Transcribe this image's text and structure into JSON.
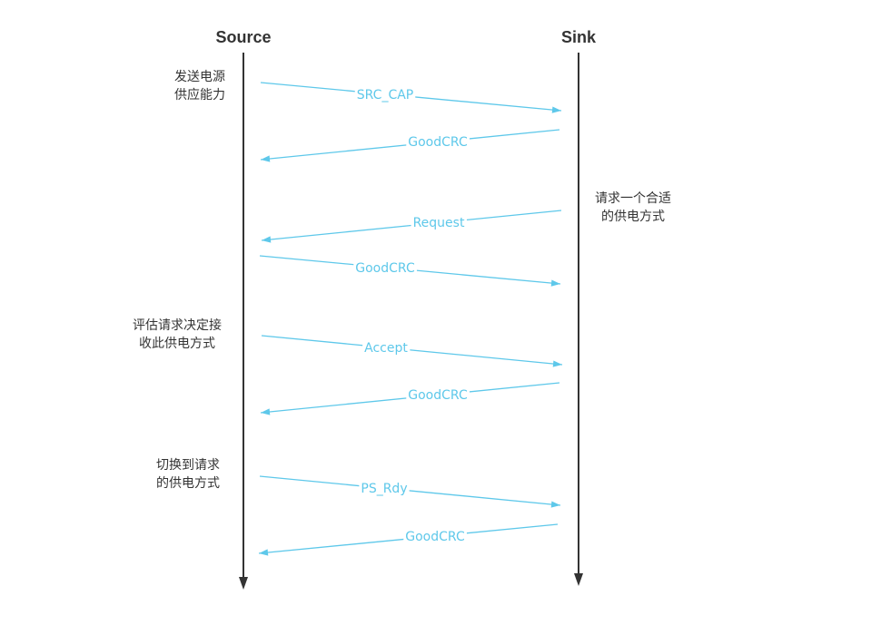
{
  "colors": {
    "lifeline": "#333333",
    "message": "#5ec8ea",
    "text": "#333333",
    "background": "#ffffff"
  },
  "participants": {
    "source": "Source",
    "sink": "Sink"
  },
  "notes": [
    {
      "side": "source",
      "lines": [
        "发送电源",
        "供应能力"
      ]
    },
    {
      "side": "sink",
      "lines": [
        "请求一个合适",
        "的供电方式"
      ]
    },
    {
      "side": "source",
      "lines": [
        "评估请求决定接",
        "收此供电方式"
      ]
    },
    {
      "side": "source",
      "lines": [
        "切换到请求",
        "的供电方式"
      ]
    }
  ],
  "messages": [
    {
      "label": "SRC_CAP",
      "from": "source",
      "to": "sink"
    },
    {
      "label": "GoodCRC",
      "from": "sink",
      "to": "source"
    },
    {
      "label": "Request",
      "from": "sink",
      "to": "source"
    },
    {
      "label": "GoodCRC",
      "from": "source",
      "to": "sink"
    },
    {
      "label": "Accept",
      "from": "source",
      "to": "sink"
    },
    {
      "label": "GoodCRC",
      "from": "sink",
      "to": "source"
    },
    {
      "label": "PS_Rdy",
      "from": "source",
      "to": "sink"
    },
    {
      "label": "GoodCRC",
      "from": "sink",
      "to": "source"
    }
  ]
}
